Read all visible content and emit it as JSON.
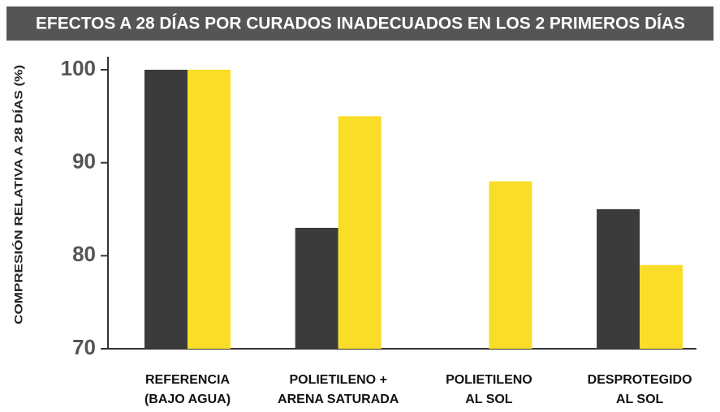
{
  "chart_data": {
    "type": "bar",
    "title": "EFECTOS  A 28 DÍAS POR CURADOS INADECUADOS EN LOS 2 PRIMEROS DÍAS",
    "y_label": "COMPRESIÓN RELATIVA A 28 DÍAS  (%)",
    "categories": [
      [
        "REFERENCIA",
        "(BAJO AGUA)"
      ],
      [
        "POLIETILENO +",
        "ARENA SATURADA"
      ],
      [
        "POLIETILENO",
        "AL SOL"
      ],
      [
        "DESPROTEGIDO",
        "AL SOL"
      ]
    ],
    "series": [
      {
        "color": "#3b3b3b",
        "values": [
          100,
          83,
          null,
          85
        ]
      },
      {
        "color": "#f9dd27",
        "values": [
          100,
          95,
          88,
          79
        ]
      }
    ],
    "ylim": [
      70,
      100
    ],
    "yticks": [
      70,
      80,
      90,
      100
    ],
    "grid": false
  }
}
